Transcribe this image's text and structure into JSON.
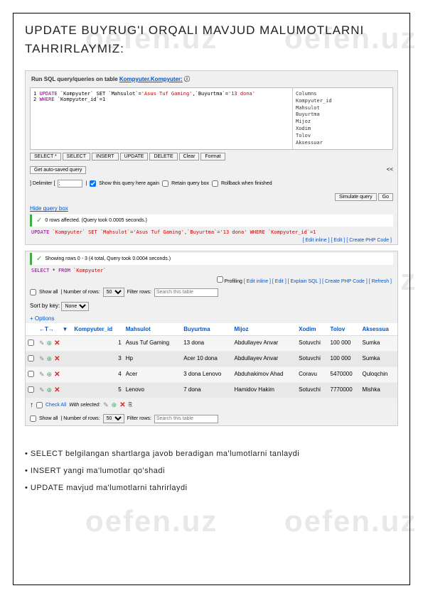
{
  "watermark": "oefen.uz",
  "title_line1": "UPDATE BUYRUG'I ORQALI MAVJUD MALUMOTLARNI",
  "title_line2": "TAHRIRLAYMIZ:",
  "panel1": {
    "header_prefix": "Run SQL query/queries on table",
    "header_link": "Kompyuter.Kompyuter:",
    "sql_line1_kw": "UPDATE",
    "sql_line1_rest": "`Kompyuter` SET `Mahsulot`=",
    "sql_line1_str": "'Asus Tuf Gaming'",
    "sql_line1_rest2": ",`Buyurtma`=",
    "sql_line1_str2": "'13 dona'",
    "sql_line2_kw": "WHERE",
    "sql_line2_rest": "`Kompyuter_id`=",
    "sql_line2_val": "1",
    "columns_label": "Columns",
    "columns": [
      "Kompyuter_id",
      "Mahsulot",
      "Buyurtma",
      "Mijoz",
      "Xodim",
      "Tolov",
      "Aksessuar"
    ],
    "buttons": [
      "SELECT *",
      "SELECT",
      "INSERT",
      "UPDATE",
      "DELETE",
      "Clear",
      "Format"
    ],
    "autosaved_btn": "Get auto-saved query",
    "delimiter_label": "] Delimiter [",
    "show_again": "Show this query here again",
    "retain": "Retain query box",
    "rollback": "Rollback when finished",
    "simulate": "Simulate query",
    "go": "Go",
    "hide": "Hide query box",
    "affected": "0 rows affected. (Query took 0.0005 seconds.)",
    "update_code_kw": "UPDATE",
    "update_code": " `Kompyuter` SET `Mahsulot`='Asus Tuf Gaming',`Buyurtma`='13 dona' WHERE `Kompyuter_id`=1",
    "links": "[ Edit inline ] [ Edit ] [ Create PHP Code ]"
  },
  "panel2": {
    "showing": "Showing rows 0 - 3 (4 total, Query took 0.0004 seconds.)",
    "select_code_kw": "SELECT",
    "select_code_rest": " * ",
    "select_code_kw2": "FROM",
    "select_code_rest2": " `Kompyuter`",
    "profiling": "Profiling",
    "links": "[ Edit inline ] [ Edit ] [ Explain SQL ] [ Create PHP Code ] [ Refresh ]",
    "showall": "Show all",
    "numrows_label": "| Number of rows:",
    "numrows_val": "50",
    "filter_label": "Filter rows:",
    "search_placeholder": "Search this table",
    "sort_label": "Sort by key:",
    "sort_val": "None",
    "options": "+ Options",
    "headers": [
      "←T→",
      "▼",
      "Kompyuter_id",
      "Mahsulot",
      "Buyurtma",
      "Mijoz",
      "Xodim",
      "Tolov",
      "Aksessua"
    ],
    "rows": [
      {
        "id": "1",
        "mahsulot": "Asus Tuf Gaming",
        "buyurtma": "13 dona",
        "mijoz": "Abdullayev Anvar",
        "xodim": "Sotuvchi",
        "tolov": "100 000",
        "aks": "Sumka"
      },
      {
        "id": "3",
        "mahsulot": "Hp",
        "buyurtma": "Acer 10 dona",
        "mijoz": "Abdullayev Anvar",
        "xodim": "Sotuvchi",
        "tolov": "100 000",
        "aks": "Sumka"
      },
      {
        "id": "4",
        "mahsulot": "Acer",
        "buyurtma": "3 dona Lenovo",
        "mijoz": "Abduhakimov Ahad",
        "xodim": "Coravu",
        "tolov": "5470000",
        "aks": "Quloqchin"
      },
      {
        "id": "5",
        "mahsulot": "Lenovo",
        "buyurtma": "7 dona",
        "mijoz": "Hamidov Hakim",
        "xodim": "Sotuvchi",
        "tolov": "7770000",
        "aks": "Mishka"
      }
    ],
    "checkall": "Check All",
    "withselected": "With selected:"
  },
  "notes": {
    "n1": "• SELECT belgilangan shartlarga javob beradigan ma'lumotlarni tanlaydi",
    "n2": " • INSERT yangi ma'lumotlar qo'shadi",
    "n3": "• UPDATE mavjud ma'lumotlarni tahrirlaydi"
  }
}
